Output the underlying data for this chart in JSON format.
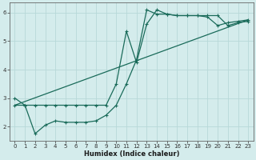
{
  "background_color": "#d4ecec",
  "grid_color": "#b8d8d8",
  "line_color": "#1a6b5a",
  "xlabel": "Humidex (Indice chaleur)",
  "xlim": [
    -0.5,
    23.5
  ],
  "ylim": [
    1.5,
    6.35
  ],
  "yticks": [
    2,
    3,
    4,
    5,
    6
  ],
  "xticks": [
    0,
    1,
    2,
    3,
    4,
    5,
    6,
    7,
    8,
    9,
    10,
    11,
    12,
    13,
    14,
    15,
    16,
    17,
    18,
    19,
    20,
    21,
    22,
    23
  ],
  "line1_x": [
    0,
    1,
    2,
    3,
    4,
    5,
    6,
    7,
    8,
    9,
    10,
    11,
    12,
    13,
    14,
    15,
    16,
    17,
    18,
    19,
    20,
    21,
    22,
    23
  ],
  "line1_y": [
    3.0,
    2.75,
    1.75,
    2.05,
    2.2,
    2.15,
    2.15,
    2.15,
    2.2,
    2.4,
    2.75,
    3.5,
    4.35,
    6.1,
    5.95,
    5.95,
    5.9,
    5.9,
    5.9,
    5.85,
    5.55,
    5.65,
    5.7,
    5.75
  ],
  "line2_x": [
    0,
    1,
    2,
    3,
    4,
    5,
    6,
    7,
    8,
    9,
    10,
    11,
    12,
    13,
    14,
    15,
    16,
    17,
    18,
    19,
    20,
    21,
    22,
    23
  ],
  "line2_y": [
    2.75,
    2.75,
    2.75,
    2.75,
    2.75,
    2.75,
    2.75,
    2.75,
    2.75,
    2.75,
    3.5,
    5.35,
    4.25,
    5.6,
    6.1,
    5.95,
    5.9,
    5.9,
    5.9,
    5.9,
    5.9,
    5.55,
    5.65,
    5.7
  ],
  "line3_x": [
    0,
    23
  ],
  "line3_y": [
    2.75,
    5.75
  ]
}
